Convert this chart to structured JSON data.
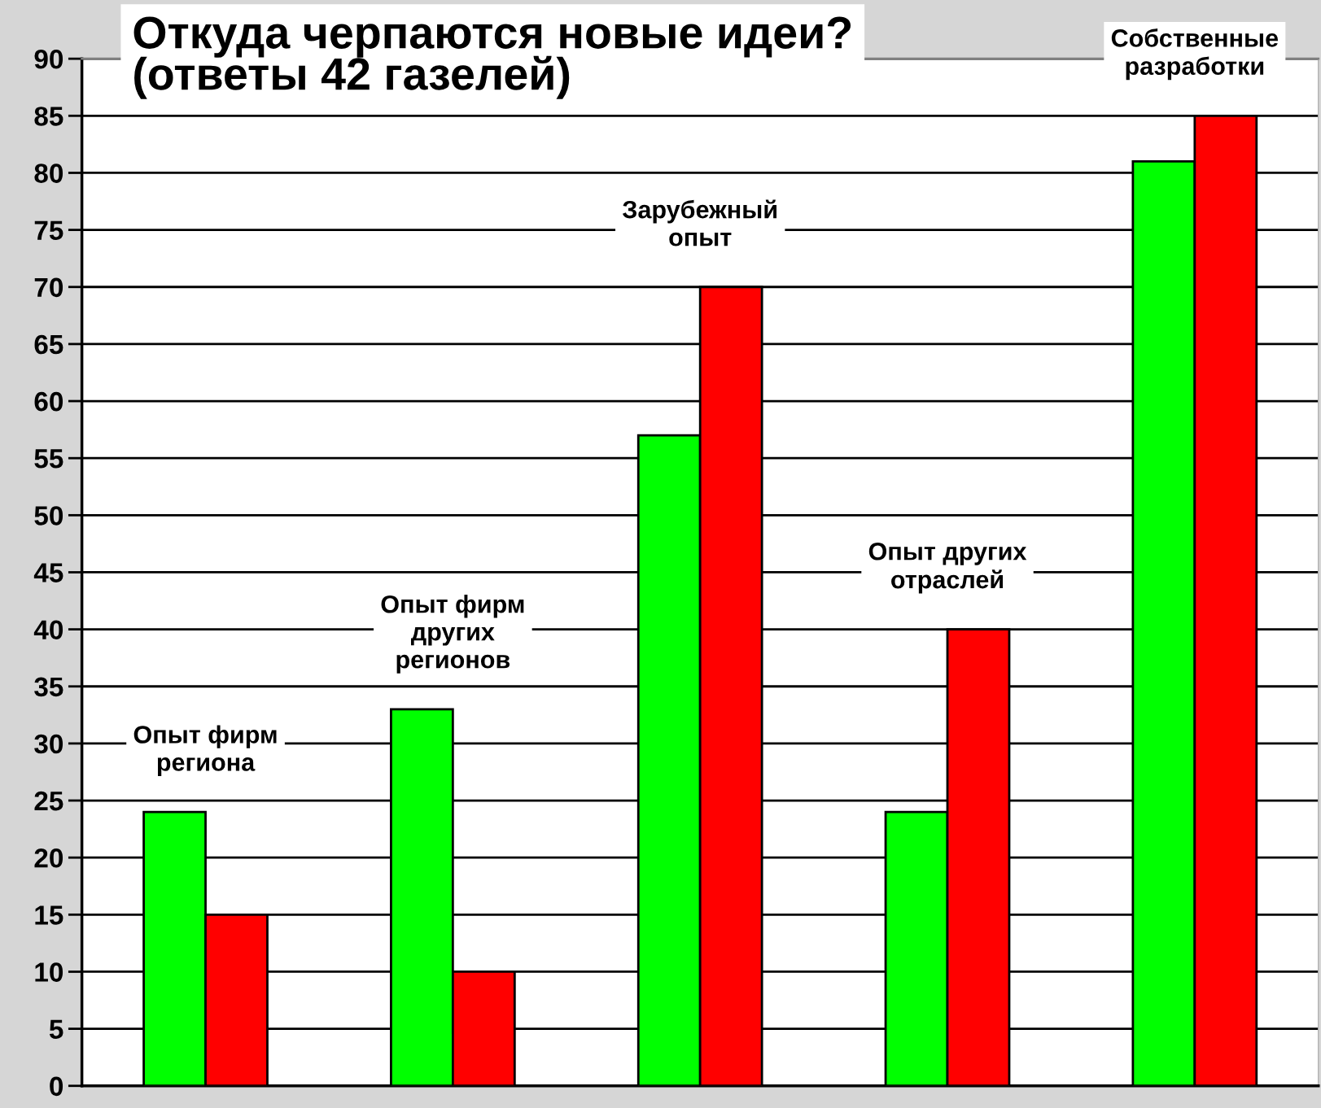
{
  "chart_data": {
    "type": "bar",
    "title": "Откуда черпаются новые идеи?\n(ответы 42 газелей)",
    "categories": [
      "Опыт фирм региона",
      "Опыт фирм других регионов",
      "Зарубежный опыт",
      "Опыт других отраслей",
      "Собственные разработки"
    ],
    "series": [
      {
        "color": "#00ff00",
        "values": [
          24,
          33,
          57,
          24,
          81
        ]
      },
      {
        "color": "#ff0000",
        "values": [
          15,
          10,
          70,
          40,
          85
        ]
      }
    ],
    "ylim": [
      0,
      90
    ],
    "yticks": [
      0,
      5,
      10,
      15,
      20,
      25,
      30,
      35,
      40,
      45,
      50,
      55,
      60,
      65,
      70,
      75,
      80,
      85,
      90
    ],
    "grid": "y"
  }
}
